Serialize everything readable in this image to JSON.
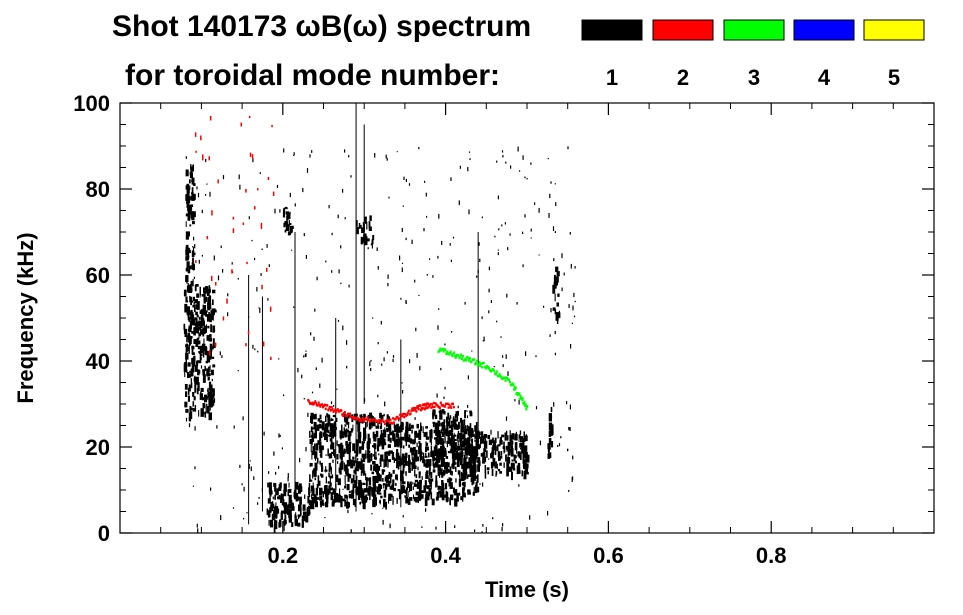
{
  "title_line1": "Shot 140173 ωB(ω) spectrum",
  "title_line2": "for toroidal mode number:",
  "legend": [
    {
      "label": "1",
      "color": "#000000"
    },
    {
      "label": "2",
      "color": "#ff0000"
    },
    {
      "label": "3",
      "color": "#00ff00"
    },
    {
      "label": "4",
      "color": "#0000ff"
    },
    {
      "label": "5",
      "color": "#ffff00"
    }
  ],
  "chart_data": {
    "type": "heatmap",
    "title": "Shot 140173 ωB(ω) spectrum for toroidal mode number",
    "xlabel": "Time (s)",
    "ylabel": "Frequency (kHz)",
    "xlim": [
      0.0,
      1.0
    ],
    "ylim": [
      0,
      100
    ],
    "x_ticks": [
      0.2,
      0.4,
      0.6,
      0.8
    ],
    "x_tick_labels": [
      "0.2",
      "0.4",
      "0.6",
      "0.8"
    ],
    "y_ticks": [
      0,
      20,
      40,
      60,
      80,
      100
    ],
    "y_tick_labels": [
      "0",
      "20",
      "40",
      "60",
      "80",
      "100"
    ],
    "blobs": [
      {
        "mode": 1,
        "t": [
          0.078,
          0.115
        ],
        "f": [
          28,
          58
        ]
      },
      {
        "mode": 1,
        "t": [
          0.08,
          0.09
        ],
        "f": [
          58,
          86
        ]
      },
      {
        "mode": 1,
        "t": [
          0.18,
          0.235
        ],
        "f": [
          2,
          12
        ]
      },
      {
        "mode": 1,
        "t": [
          0.232,
          0.33
        ],
        "f": [
          7,
          28
        ]
      },
      {
        "mode": 1,
        "t": [
          0.33,
          0.44
        ],
        "f": [
          8,
          26
        ]
      },
      {
        "mode": 1,
        "t": [
          0.42,
          0.5
        ],
        "f": [
          14,
          24
        ]
      },
      {
        "mode": 1,
        "t": [
          0.383,
          0.43
        ],
        "f": [
          18,
          29
        ]
      },
      {
        "mode": 1,
        "t": [
          0.29,
          0.31
        ],
        "f": [
          68,
          74
        ]
      },
      {
        "mode": 1,
        "t": [
          0.2,
          0.21
        ],
        "f": [
          70,
          76
        ]
      },
      {
        "mode": 1,
        "t": [
          0.531,
          0.538
        ],
        "f": [
          50,
          62
        ]
      },
      {
        "mode": 1,
        "t": [
          0.525,
          0.53
        ],
        "f": [
          18,
          30
        ]
      }
    ],
    "mode2_track": {
      "mode": 2,
      "t": [
        0.23,
        0.26,
        0.29,
        0.33,
        0.36,
        0.38,
        0.41
      ],
      "f": [
        31,
        29,
        27,
        26,
        29,
        30,
        30
      ]
    },
    "mode3_track": {
      "mode": 3,
      "t": [
        0.39,
        0.42,
        0.45,
        0.48,
        0.5
      ],
      "f": [
        43,
        41,
        39,
        35,
        29
      ]
    }
  }
}
